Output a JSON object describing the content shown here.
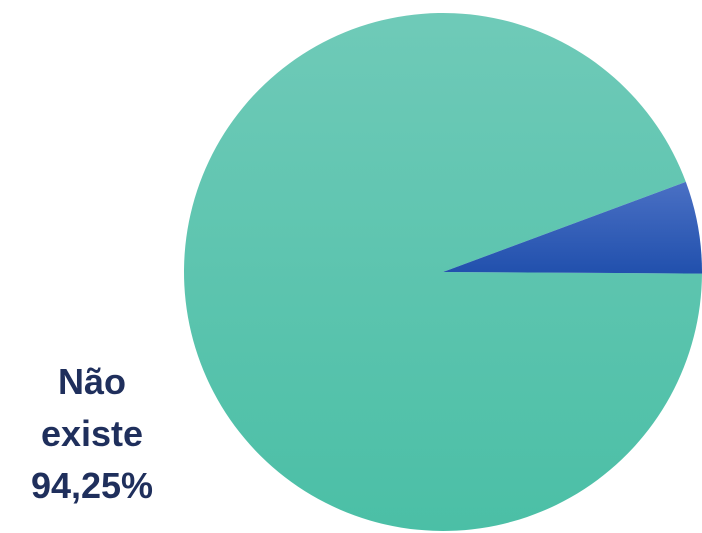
{
  "chart_data": {
    "type": "pie",
    "slices": [
      {
        "label": "Não existe",
        "value": 94.25,
        "value_text": "94,25%",
        "color": "#56c5ad"
      },
      {
        "label": "",
        "value": 5.75,
        "value_text": "",
        "color": "#2d55b3"
      }
    ],
    "title": "",
    "legend": "none"
  },
  "labels": {
    "main_line1": "Não",
    "main_line2": "existe",
    "main_value": "94,25%"
  }
}
